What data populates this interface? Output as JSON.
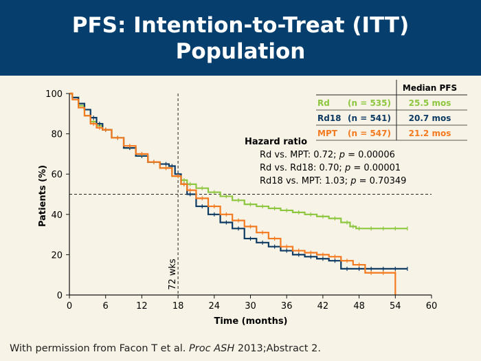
{
  "slide": {
    "title_line1": "PFS: Intention-to-Treat (ITT)",
    "title_line2": "Population",
    "footer_pre": "With permission from Facon T et al. ",
    "footer_journal": "Proc ASH",
    "footer_post": " 2013;Abstract 2."
  },
  "colors": {
    "header_bg": "#063f6e",
    "background": "#f7f3e6",
    "Rd": "#8dc63f",
    "Rd18": "#0d3a63",
    "MPT": "#f47a20"
  },
  "chart_data": {
    "type": "line",
    "subtype": "kaplan-meier step curves",
    "xlabel": "Time (months)",
    "ylabel": "Patients (%)",
    "xlim": [
      0,
      60
    ],
    "ylim": [
      0,
      100
    ],
    "xticks": [
      0,
      6,
      12,
      18,
      24,
      30,
      36,
      42,
      48,
      54,
      60
    ],
    "yticks": [
      0,
      20,
      40,
      60,
      80,
      100
    ],
    "grid": false,
    "reference_lines": [
      {
        "orientation": "vertical",
        "x": 18,
        "label": "72 wks"
      },
      {
        "orientation": "horizontal",
        "y": 50
      }
    ],
    "legend": {
      "placement": "top-right",
      "header": "Median PFS",
      "entries": [
        {
          "name": "Rd",
          "n": "(n = 535)",
          "median": "25.5 mos",
          "color": "#8dc63f"
        },
        {
          "name": "Rd18",
          "n": "(n = 541)",
          "median": "20.7 mos",
          "color": "#0d3a63"
        },
        {
          "name": "MPT",
          "n": "(n = 547)",
          "median": "21.2 mos",
          "color": "#f47a20"
        }
      ]
    },
    "annotation": {
      "title": "Hazard ratio",
      "lines": [
        {
          "pre": "Rd vs. MPT: 0.72; ",
          "p": "p",
          "post": " = 0.00006"
        },
        {
          "pre": "Rd vs. Rd18: 0.70; ",
          "p": "p",
          "post": " = 0.00001"
        },
        {
          "pre": "Rd18 vs. MPT: 1.03; ",
          "p": "p",
          "post": " = 0.70349"
        }
      ]
    },
    "series": [
      {
        "name": "Rd",
        "color": "#8dc63f",
        "x": [
          0,
          1,
          2,
          3,
          4,
          5,
          6,
          8,
          10,
          12,
          14,
          16,
          18,
          19,
          20,
          22,
          24,
          26,
          28,
          30,
          32,
          34,
          36,
          38,
          40,
          42,
          44,
          46,
          47,
          48,
          50,
          52,
          54,
          56
        ],
        "y": [
          100,
          98,
          94,
          89,
          86,
          84,
          82,
          78,
          73,
          69,
          66,
          63,
          59,
          57,
          55,
          53,
          51,
          49,
          47,
          45,
          44,
          43,
          42,
          41,
          40,
          39,
          38,
          36,
          34,
          33,
          33,
          33,
          33,
          33
        ],
        "end_x": 56
      },
      {
        "name": "Rd18",
        "color": "#0d3a63",
        "x": [
          0,
          1,
          2,
          3,
          4,
          5,
          6,
          8,
          10,
          12,
          14,
          16,
          17,
          18,
          19,
          20,
          22,
          24,
          26,
          28,
          30,
          32,
          34,
          36,
          38,
          40,
          42,
          44,
          46,
          48,
          50,
          52,
          54,
          56
        ],
        "y": [
          100,
          98,
          95,
          92,
          88,
          85,
          82,
          78,
          73,
          69,
          66,
          65,
          64,
          60,
          55,
          50,
          44,
          40,
          36,
          33,
          28,
          26,
          24,
          22,
          20,
          19,
          18,
          17,
          13,
          13,
          13,
          13,
          13,
          13
        ],
        "end_x": 56
      },
      {
        "name": "MPT",
        "color": "#f47a20",
        "x": [
          0,
          1,
          2,
          3,
          4,
          5,
          6,
          8,
          10,
          12,
          14,
          16,
          18,
          19,
          20,
          22,
          24,
          26,
          28,
          30,
          32,
          34,
          36,
          38,
          40,
          42,
          44,
          46,
          48,
          50,
          52,
          54
        ],
        "y": [
          100,
          97,
          93,
          89,
          85,
          83,
          82,
          78,
          74,
          70,
          66,
          63,
          59,
          55,
          52,
          48,
          44,
          40,
          37,
          34,
          31,
          28,
          24,
          22,
          21,
          20,
          19,
          17,
          15,
          11,
          11,
          11
        ],
        "drop_to_zero_x": 54
      }
    ]
  }
}
